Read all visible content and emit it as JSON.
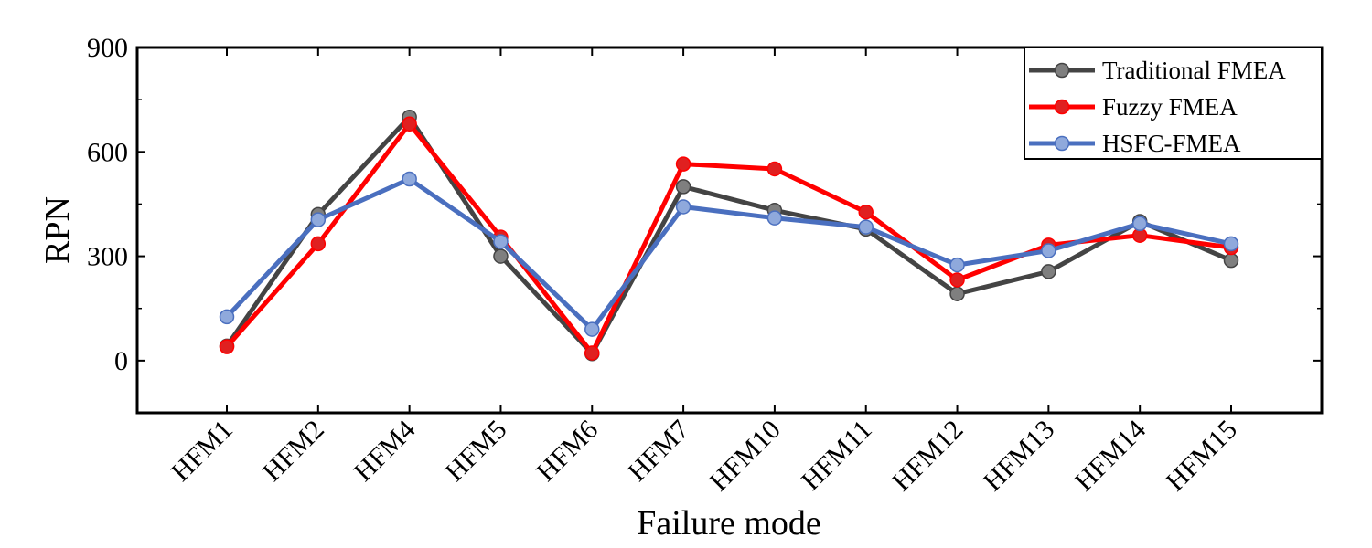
{
  "chart_data": {
    "type": "line",
    "categories": [
      "HFM1",
      "HFM2",
      "HFM4",
      "HFM5",
      "HFM6",
      "HFM7",
      "HFM10",
      "HFM11",
      "HFM12",
      "HFM13",
      "HFM14",
      "HFM15"
    ],
    "series": [
      {
        "name": "Traditional FMEA",
        "color": "#444444",
        "marker_color": "#7f7f7f",
        "values": [
          42,
          420,
          700,
          300,
          20,
          500,
          432,
          378,
          192,
          256,
          400,
          288
        ]
      },
      {
        "name": "Fuzzy FMEA",
        "color": "#ff0000",
        "marker_color": "#e02020",
        "values": [
          40,
          336,
          680,
          355,
          22,
          565,
          551,
          427,
          232,
          332,
          360,
          325
        ]
      },
      {
        "name": "HSFC-FMEA",
        "color": "#4a6fbf",
        "marker_color": "#8fa9dc",
        "values": [
          126,
          405,
          522,
          342,
          90,
          442,
          410,
          384,
          275,
          316,
          394,
          336
        ]
      }
    ],
    "xlabel": "Failure mode",
    "ylabel": "RPN",
    "ylim": [
      -150,
      900
    ],
    "yticks": [
      0,
      300,
      600,
      900
    ],
    "grid": false,
    "legend_position": "top-right"
  }
}
